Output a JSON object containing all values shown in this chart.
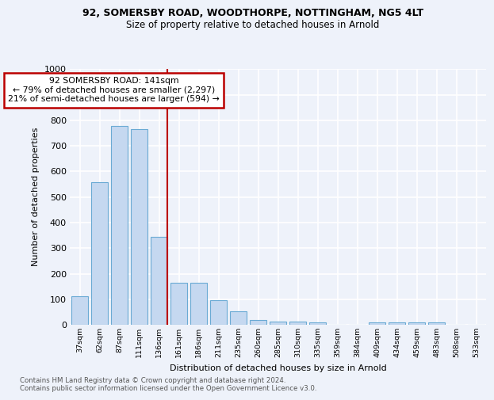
{
  "title1": "92, SOMERSBY ROAD, WOODTHORPE, NOTTINGHAM, NG5 4LT",
  "title2": "Size of property relative to detached houses in Arnold",
  "xlabel": "Distribution of detached houses by size in Arnold",
  "ylabel": "Number of detached properties",
  "bar_labels": [
    "37sqm",
    "62sqm",
    "87sqm",
    "111sqm",
    "136sqm",
    "161sqm",
    "186sqm",
    "211sqm",
    "235sqm",
    "260sqm",
    "285sqm",
    "310sqm",
    "335sqm",
    "359sqm",
    "384sqm",
    "409sqm",
    "434sqm",
    "459sqm",
    "483sqm",
    "508sqm",
    "533sqm"
  ],
  "bar_values": [
    113,
    557,
    778,
    765,
    345,
    163,
    163,
    97,
    52,
    18,
    13,
    13,
    8,
    0,
    0,
    8,
    8,
    8,
    8,
    0,
    0
  ],
  "bar_color": "#c5d8f0",
  "bar_edge_color": "#6aaad4",
  "highlight_index": 4,
  "highlight_line_color": "#bb0000",
  "annotation_box_color": "#bb0000",
  "annotation_text": "92 SOMERSBY ROAD: 141sqm\n← 79% of detached houses are smaller (2,297)\n21% of semi-detached houses are larger (594) →",
  "ylim": [
    0,
    1000
  ],
  "yticks": [
    0,
    100,
    200,
    300,
    400,
    500,
    600,
    700,
    800,
    900,
    1000
  ],
  "footer1": "Contains HM Land Registry data © Crown copyright and database right 2024.",
  "footer2": "Contains public sector information licensed under the Open Government Licence v3.0.",
  "bg_color": "#eef2fa",
  "grid_color": "#d8e0f0"
}
